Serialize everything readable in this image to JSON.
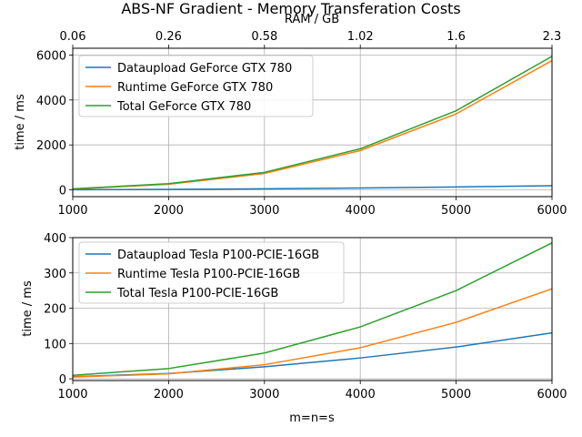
{
  "figure": {
    "title": "ABS-NF Gradient - Memory Transferation Costs"
  },
  "chart_data": [
    {
      "type": "line",
      "title": "ABS-NF Gradient - Memory Transferation Costs",
      "xlabel": "",
      "ylabel": "time / ms",
      "xlim": [
        1000,
        6000
      ],
      "ylim": [
        -300,
        6300
      ],
      "xticks": [
        1000,
        2000,
        3000,
        4000,
        5000,
        6000
      ],
      "yticks": [
        0,
        2000,
        4000,
        6000
      ],
      "secondary_x": {
        "label": "RAM / GB",
        "tick_labels": [
          "0.06",
          "0.26",
          "0.58",
          "1.02",
          "1.6",
          "2.3"
        ]
      },
      "grid": true,
      "legend_position": "top-left",
      "x": [
        1000,
        2000,
        3000,
        4000,
        5000,
        6000
      ],
      "series": [
        {
          "name": "Dataupload GeForce GTX 780",
          "color": "#1f77b4",
          "values": [
            8,
            25,
            50,
            85,
            130,
            185
          ]
        },
        {
          "name": "Runtime GeForce GTX 780",
          "color": "#ff7f0e",
          "values": [
            40,
            250,
            730,
            1750,
            3380,
            5750
          ]
        },
        {
          "name": "Total GeForce GTX 780",
          "color": "#2ca02c",
          "values": [
            50,
            275,
            780,
            1830,
            3520,
            5940
          ]
        }
      ]
    },
    {
      "type": "line",
      "title": "",
      "xlabel": "m=n=s",
      "ylabel": "time / ms",
      "xlim": [
        1000,
        6000
      ],
      "ylim": [
        -5,
        400
      ],
      "xticks": [
        1000,
        2000,
        3000,
        4000,
        5000,
        6000
      ],
      "yticks": [
        0,
        100,
        200,
        300,
        400
      ],
      "grid": true,
      "legend_position": "top-left",
      "x": [
        1000,
        2000,
        3000,
        4000,
        5000,
        6000
      ],
      "series": [
        {
          "name": "Dataupload Tesla P100-PCIE-16GB",
          "color": "#1f77b4",
          "values": [
            6,
            15,
            34,
            59,
            90,
            130
          ]
        },
        {
          "name": "Runtime Tesla P100-PCIE-16GB",
          "color": "#ff7f0e",
          "values": [
            5,
            14,
            40,
            88,
            160,
            255
          ]
        },
        {
          "name": "Total Tesla P100-PCIE-16GB",
          "color": "#2ca02c",
          "values": [
            10,
            29,
            73,
            147,
            250,
            385
          ]
        }
      ]
    }
  ]
}
